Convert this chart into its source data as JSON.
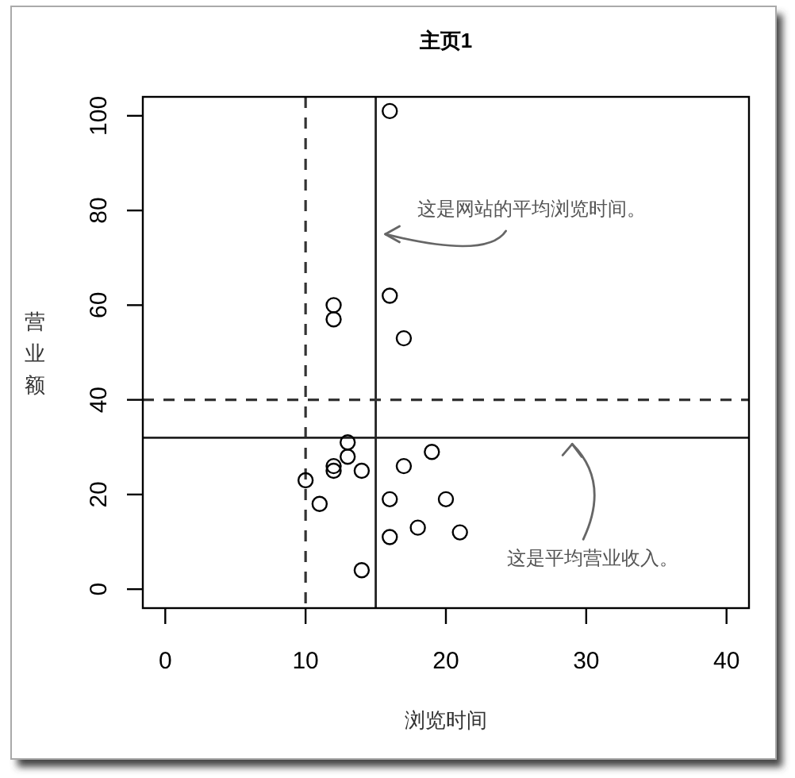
{
  "chart_data": {
    "type": "scatter",
    "title": "主页1",
    "xlabel": "浏览时间",
    "ylabel": "营业额",
    "x": [
      16,
      16,
      17,
      12,
      12,
      13,
      13,
      12,
      12,
      14,
      10,
      11,
      14,
      16,
      16,
      17,
      19,
      18,
      20,
      21
    ],
    "values": [
      101,
      62,
      53,
      60,
      57,
      31,
      28,
      26,
      25,
      25,
      23,
      18,
      4,
      19,
      11,
      26,
      29,
      13,
      19,
      12
    ],
    "color": "#000000",
    "marker": "circle",
    "xlim": [
      -1.6,
      41.6
    ],
    "ylim": [
      -4,
      104
    ],
    "xticks": [
      0,
      10,
      20,
      30,
      40
    ],
    "yticks": [
      0,
      20,
      40,
      60,
      80,
      100
    ],
    "ref_lines": [
      {
        "axis": "x",
        "value": 10,
        "line_style": "dashed",
        "color": "#333333"
      },
      {
        "axis": "x",
        "value": 15,
        "line_style": "solid",
        "color": "#222222"
      },
      {
        "axis": "y",
        "value": 40,
        "line_style": "dashed",
        "color": "#333333"
      },
      {
        "axis": "y",
        "value": 32,
        "line_style": "solid",
        "color": "#222222"
      }
    ],
    "annotations": [
      {
        "text": "这是网站的平均浏览时间。",
        "x": 15,
        "y": 75
      },
      {
        "text": "这是平均营业收入。",
        "x": 29,
        "y": 32
      }
    ]
  }
}
